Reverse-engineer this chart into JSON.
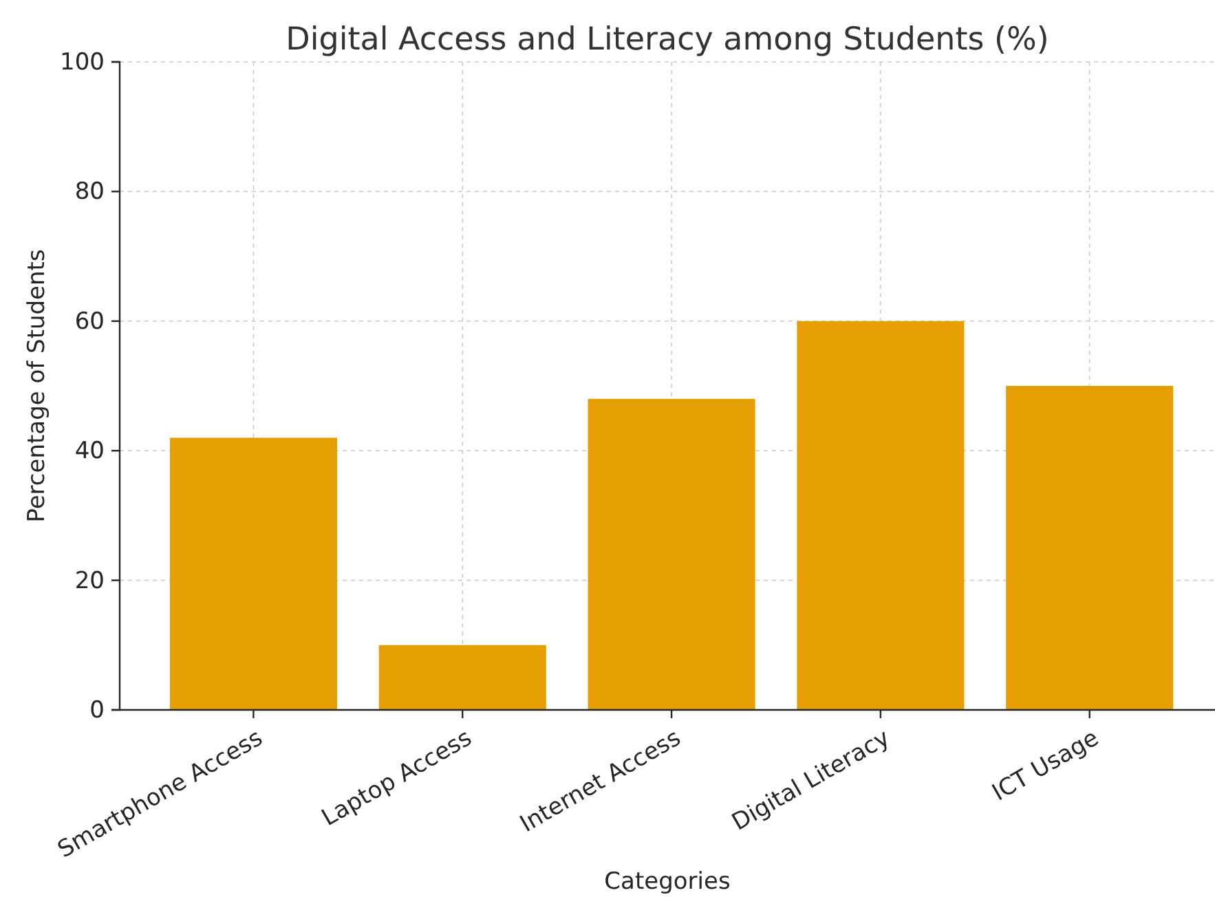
{
  "chart_data": {
    "type": "bar",
    "title": "Digital Access and Literacy among Students (%)",
    "xlabel": "Categories",
    "ylabel": "Percentage of Students",
    "categories": [
      "Smartphone Access",
      "Laptop Access",
      "Internet Access",
      "Digital Literacy",
      "ICT Usage"
    ],
    "values": [
      42,
      10,
      48,
      60,
      50
    ],
    "color": "#e69f00",
    "ylim": [
      0,
      100
    ],
    "yticks": [
      0,
      20,
      40,
      60,
      80,
      100
    ],
    "grid": true
  }
}
